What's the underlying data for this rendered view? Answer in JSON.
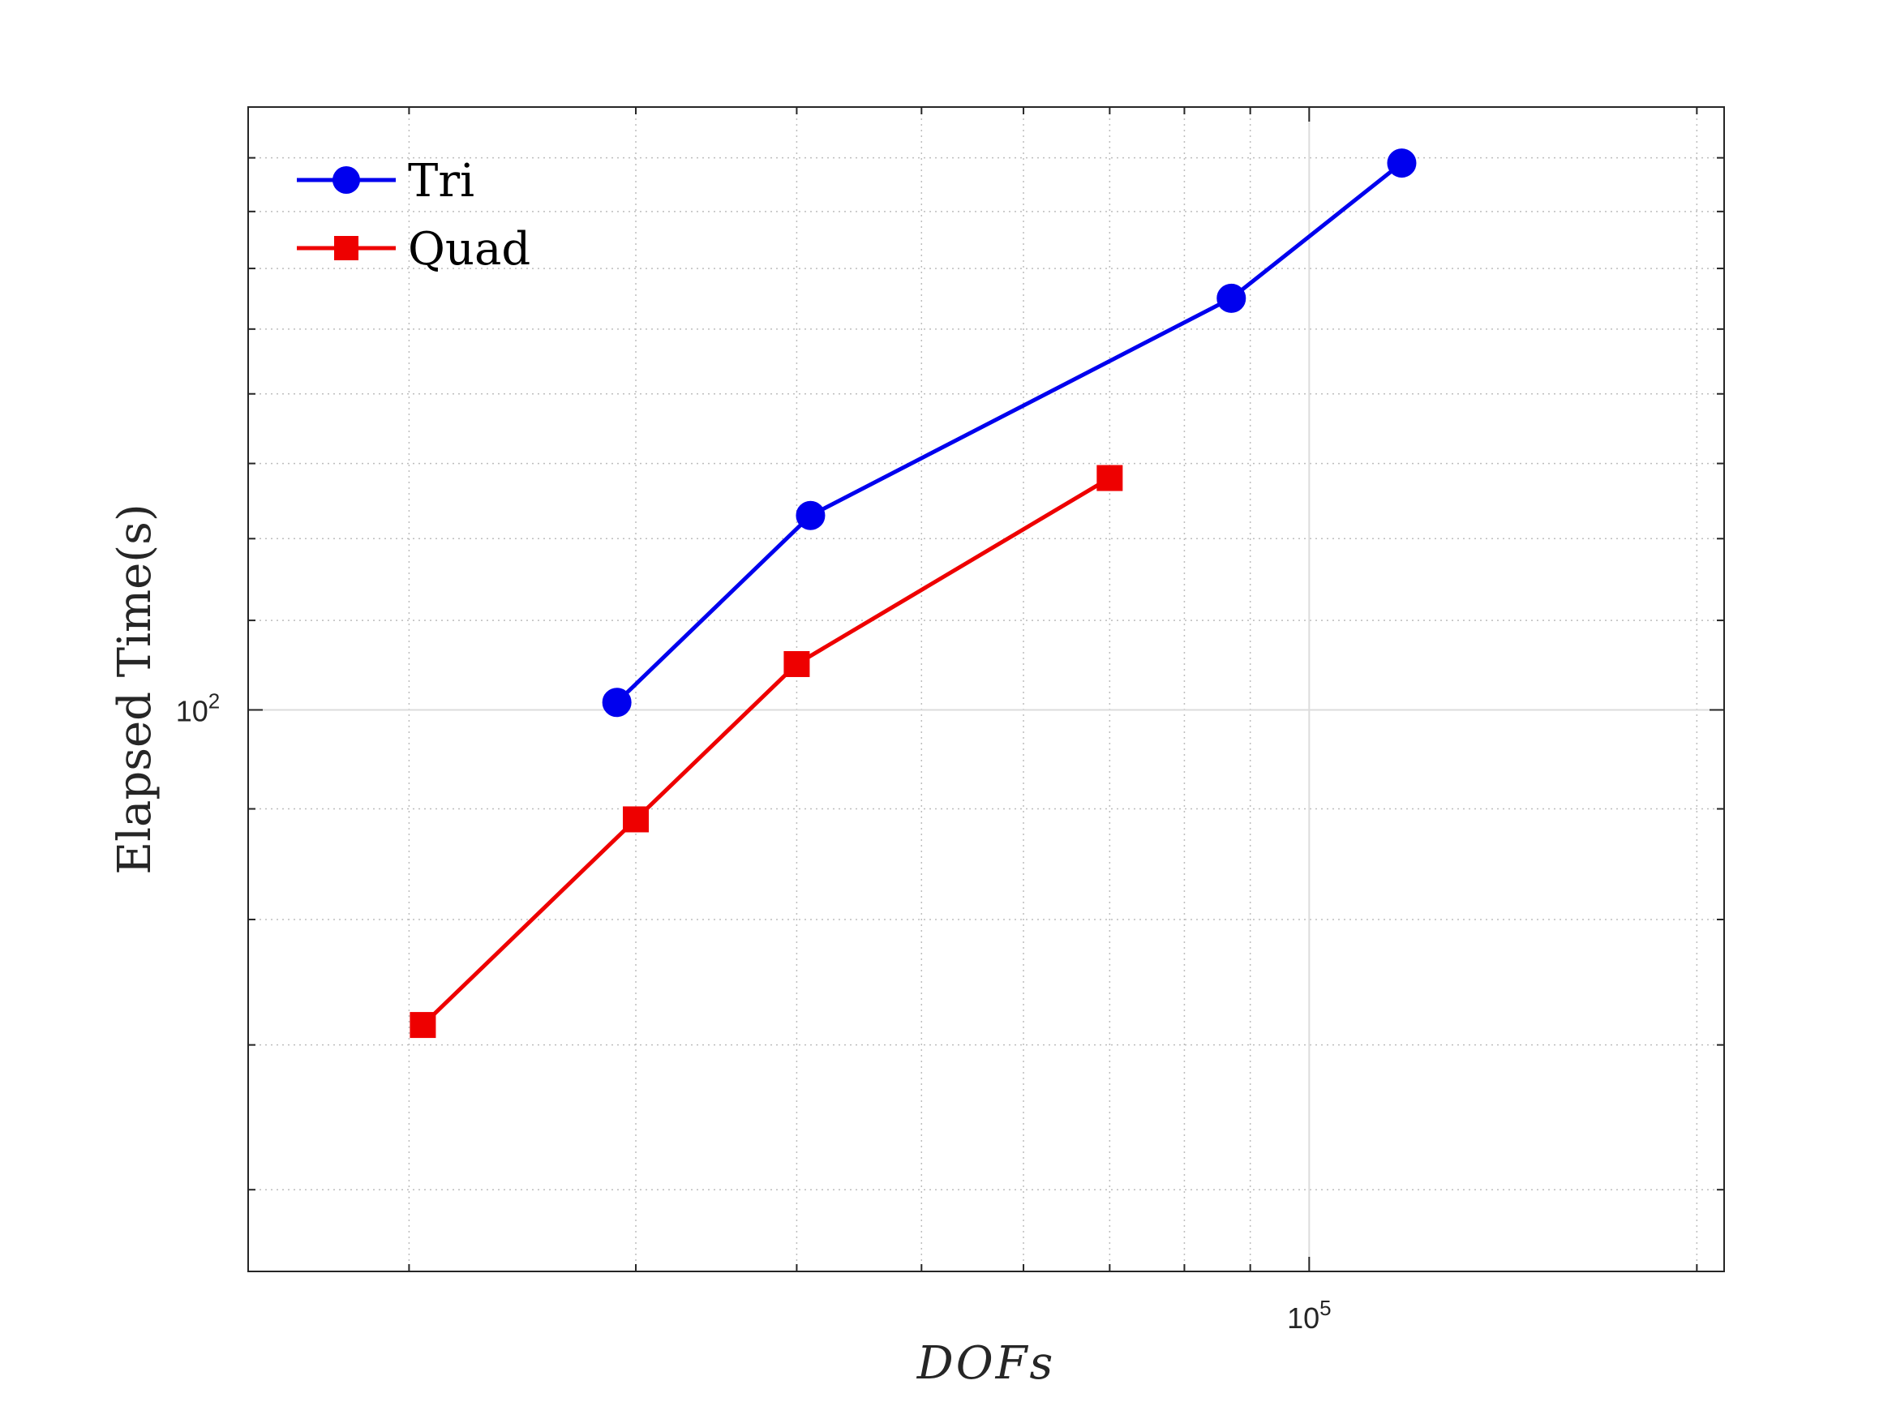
{
  "chart_data": {
    "type": "line",
    "xlabel": "DOFs",
    "ylabel": "Elapsed Time(s)",
    "x_scale": "log",
    "y_scale": "log",
    "xlim": [
      15000,
      210000
    ],
    "ylim": [
      55,
      190
    ],
    "x_ticks": [
      {
        "value": 100000,
        "base": "10",
        "exp": "5"
      }
    ],
    "y_ticks": [
      {
        "value": 100,
        "base": "10",
        "exp": "2"
      }
    ],
    "x_minor_ticks": [
      20000,
      30000,
      40000,
      50000,
      60000,
      70000,
      80000,
      90000,
      200000
    ],
    "y_minor_ticks": [
      60,
      70,
      80,
      90,
      110,
      120,
      130,
      140,
      150,
      160,
      170,
      180
    ],
    "grid": true,
    "legend": "top-left",
    "series": [
      {
        "name": "Tri",
        "color": "#0000ee",
        "marker": "circle",
        "x": [
          29000,
          41000,
          87000,
          118000
        ],
        "y": [
          100.8,
          123,
          155,
          179
        ]
      },
      {
        "name": "Quad",
        "color": "#ee0000",
        "marker": "square",
        "x": [
          20500,
          30000,
          40000,
          70000
        ],
        "y": [
          71.5,
          89,
          105,
          128
        ]
      }
    ]
  }
}
